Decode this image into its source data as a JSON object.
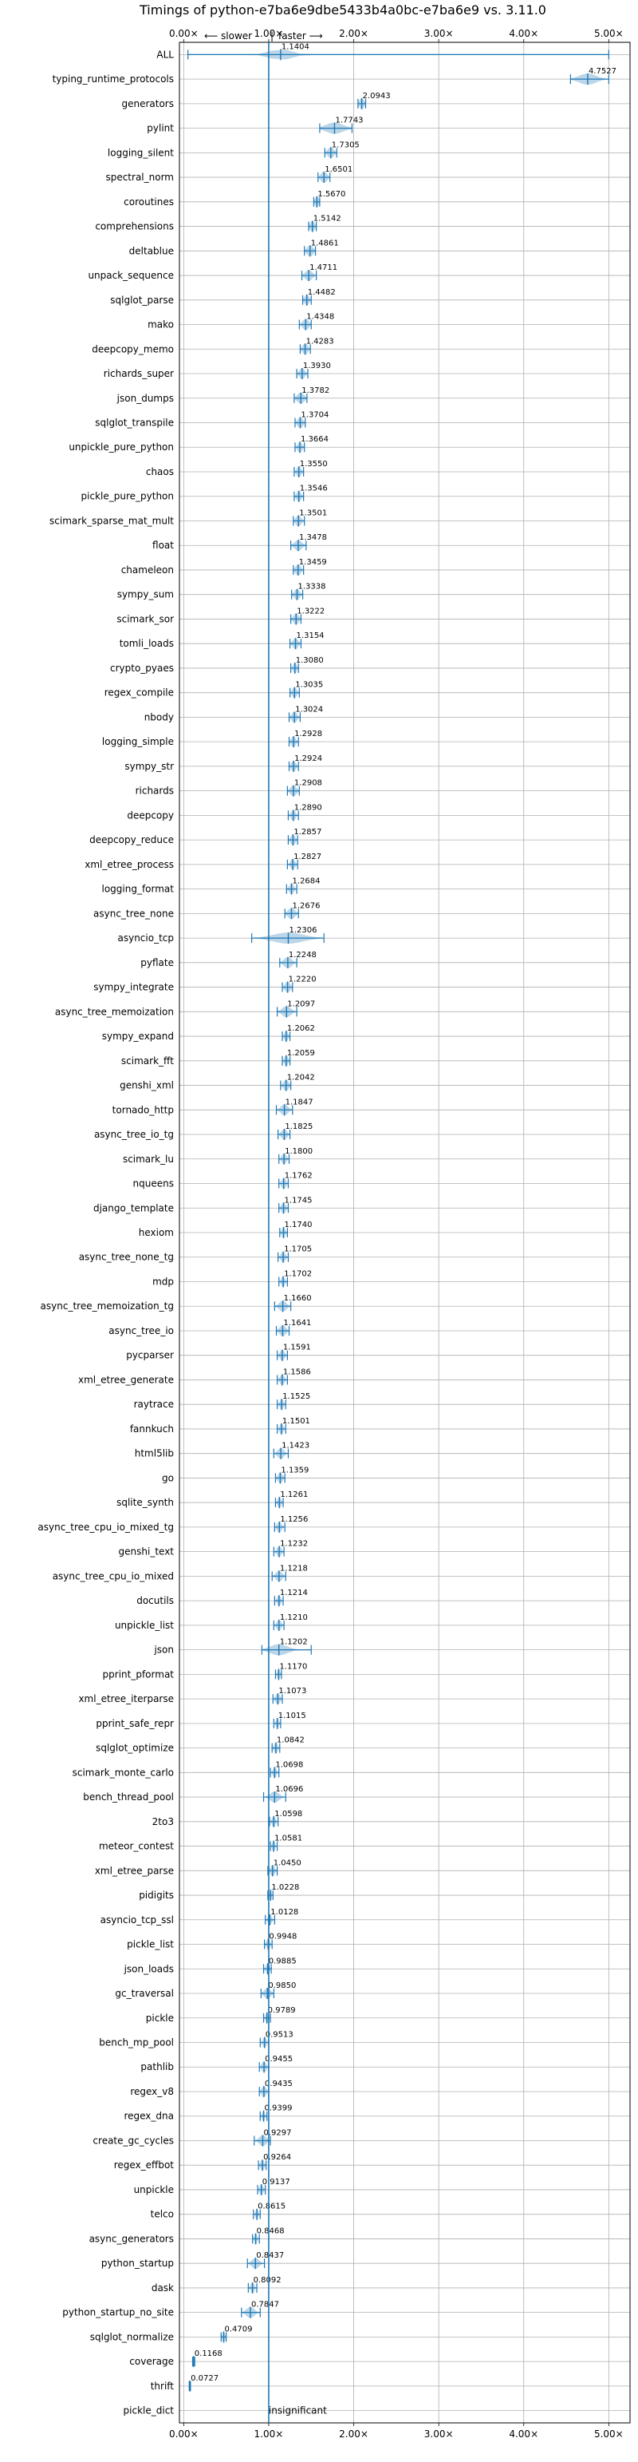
{
  "chart_data": {
    "type": "violin",
    "title": "Timings of python-e7ba6e9dbe5433b4a0bc-e7ba6e9 vs. 3.11.0",
    "slower_label": "⟵ slower",
    "faster_label": "faster ⟶",
    "separator": "|",
    "x_ticks": [
      0,
      1,
      2,
      3,
      4,
      5
    ],
    "x_tick_labels": [
      "0.00×",
      "1.00×",
      "2.00×",
      "3.00×",
      "4.00×",
      "5.00×"
    ],
    "xlim": [
      -0.05,
      5.25
    ],
    "reference_line": 1.0,
    "grid": true,
    "series": [
      {
        "name": "ALL",
        "label": "1.1404",
        "value": 1.1404,
        "lo": 0.05,
        "hi": 5.0,
        "spread": 0.25
      },
      {
        "name": "typing_runtime_protocols",
        "label": "4.7527",
        "value": 4.7527,
        "lo": 4.55,
        "hi": 5.0,
        "spread": 0.2
      },
      {
        "name": "generators",
        "label": "2.0943",
        "value": 2.0943,
        "lo": 2.05,
        "hi": 2.14,
        "spread": 0.05
      },
      {
        "name": "pylint",
        "label": "1.7743",
        "value": 1.7743,
        "lo": 1.6,
        "hi": 1.98,
        "spread": 0.2
      },
      {
        "name": "logging_silent",
        "label": "1.7305",
        "value": 1.7305,
        "lo": 1.66,
        "hi": 1.8,
        "spread": 0.07
      },
      {
        "name": "spectral_norm",
        "label": "1.6501",
        "value": 1.6501,
        "lo": 1.58,
        "hi": 1.72,
        "spread": 0.07
      },
      {
        "name": "coroutines",
        "label": "1.5670",
        "value": 1.567,
        "lo": 1.53,
        "hi": 1.6,
        "spread": 0.04
      },
      {
        "name": "comprehensions",
        "label": "1.5142",
        "value": 1.5142,
        "lo": 1.47,
        "hi": 1.56,
        "spread": 0.05
      },
      {
        "name": "deltablue",
        "label": "1.4861",
        "value": 1.4861,
        "lo": 1.42,
        "hi": 1.55,
        "spread": 0.07
      },
      {
        "name": "unpack_sequence",
        "label": "1.4711",
        "value": 1.4711,
        "lo": 1.39,
        "hi": 1.56,
        "spread": 0.08
      },
      {
        "name": "sqlglot_parse",
        "label": "1.4482",
        "value": 1.4482,
        "lo": 1.4,
        "hi": 1.5,
        "spread": 0.05
      },
      {
        "name": "mako",
        "label": "1.4348",
        "value": 1.4348,
        "lo": 1.36,
        "hi": 1.5,
        "spread": 0.07
      },
      {
        "name": "deepcopy_memo",
        "label": "1.4283",
        "value": 1.4283,
        "lo": 1.37,
        "hi": 1.49,
        "spread": 0.06
      },
      {
        "name": "richards_super",
        "label": "1.3930",
        "value": 1.393,
        "lo": 1.33,
        "hi": 1.46,
        "spread": 0.06
      },
      {
        "name": "json_dumps",
        "label": "1.3782",
        "value": 1.3782,
        "lo": 1.3,
        "hi": 1.45,
        "spread": 0.08
      },
      {
        "name": "sqlglot_transpile",
        "label": "1.3704",
        "value": 1.3704,
        "lo": 1.31,
        "hi": 1.43,
        "spread": 0.06
      },
      {
        "name": "unpickle_pure_python",
        "label": "1.3664",
        "value": 1.3664,
        "lo": 1.31,
        "hi": 1.42,
        "spread": 0.05
      },
      {
        "name": "chaos",
        "label": "1.3550",
        "value": 1.355,
        "lo": 1.3,
        "hi": 1.41,
        "spread": 0.05
      },
      {
        "name": "pickle_pure_python",
        "label": "1.3546",
        "value": 1.3546,
        "lo": 1.3,
        "hi": 1.41,
        "spread": 0.05
      },
      {
        "name": "scimark_sparse_mat_mult",
        "label": "1.3501",
        "value": 1.3501,
        "lo": 1.29,
        "hi": 1.42,
        "spread": 0.06
      },
      {
        "name": "float",
        "label": "1.3478",
        "value": 1.3478,
        "lo": 1.26,
        "hi": 1.44,
        "spread": 0.08
      },
      {
        "name": "chameleon",
        "label": "1.3459",
        "value": 1.3459,
        "lo": 1.29,
        "hi": 1.41,
        "spread": 0.06
      },
      {
        "name": "sympy_sum",
        "label": "1.3338",
        "value": 1.3338,
        "lo": 1.27,
        "hi": 1.4,
        "spread": 0.06
      },
      {
        "name": "scimark_sor",
        "label": "1.3222",
        "value": 1.3222,
        "lo": 1.26,
        "hi": 1.38,
        "spread": 0.06
      },
      {
        "name": "tomli_loads",
        "label": "1.3154",
        "value": 1.3154,
        "lo": 1.25,
        "hi": 1.38,
        "spread": 0.06
      },
      {
        "name": "crypto_pyaes",
        "label": "1.3080",
        "value": 1.308,
        "lo": 1.26,
        "hi": 1.35,
        "spread": 0.04
      },
      {
        "name": "regex_compile",
        "label": "1.3035",
        "value": 1.3035,
        "lo": 1.25,
        "hi": 1.36,
        "spread": 0.05
      },
      {
        "name": "nbody",
        "label": "1.3024",
        "value": 1.3024,
        "lo": 1.24,
        "hi": 1.37,
        "spread": 0.06
      },
      {
        "name": "logging_simple",
        "label": "1.2928",
        "value": 1.2928,
        "lo": 1.24,
        "hi": 1.35,
        "spread": 0.05
      },
      {
        "name": "sympy_str",
        "label": "1.2924",
        "value": 1.2924,
        "lo": 1.24,
        "hi": 1.35,
        "spread": 0.05
      },
      {
        "name": "richards",
        "label": "1.2908",
        "value": 1.2908,
        "lo": 1.22,
        "hi": 1.36,
        "spread": 0.07
      },
      {
        "name": "deepcopy",
        "label": "1.2890",
        "value": 1.289,
        "lo": 1.23,
        "hi": 1.35,
        "spread": 0.05
      },
      {
        "name": "deepcopy_reduce",
        "label": "1.2857",
        "value": 1.2857,
        "lo": 1.23,
        "hi": 1.34,
        "spread": 0.05
      },
      {
        "name": "xml_etree_process",
        "label": "1.2827",
        "value": 1.2827,
        "lo": 1.22,
        "hi": 1.34,
        "spread": 0.05
      },
      {
        "name": "logging_format",
        "label": "1.2684",
        "value": 1.2684,
        "lo": 1.21,
        "hi": 1.33,
        "spread": 0.05
      },
      {
        "name": "async_tree_none",
        "label": "1.2676",
        "value": 1.2676,
        "lo": 1.19,
        "hi": 1.35,
        "spread": 0.08
      },
      {
        "name": "asyncio_tcp",
        "label": "1.2306",
        "value": 1.2306,
        "lo": 0.8,
        "hi": 1.65,
        "spread": 0.35
      },
      {
        "name": "pyflate",
        "label": "1.2248",
        "value": 1.2248,
        "lo": 1.13,
        "hi": 1.33,
        "spread": 0.09
      },
      {
        "name": "sympy_integrate",
        "label": "1.2220",
        "value": 1.222,
        "lo": 1.16,
        "hi": 1.28,
        "spread": 0.06
      },
      {
        "name": "async_tree_memoization",
        "label": "1.2097",
        "value": 1.2097,
        "lo": 1.1,
        "hi": 1.33,
        "spread": 0.1
      },
      {
        "name": "sympy_expand",
        "label": "1.2062",
        "value": 1.2062,
        "lo": 1.16,
        "hi": 1.25,
        "spread": 0.04
      },
      {
        "name": "scimark_fft",
        "label": "1.2059",
        "value": 1.2059,
        "lo": 1.16,
        "hi": 1.25,
        "spread": 0.04
      },
      {
        "name": "genshi_xml",
        "label": "1.2042",
        "value": 1.2042,
        "lo": 1.14,
        "hi": 1.26,
        "spread": 0.06
      },
      {
        "name": "tornado_http",
        "label": "1.1847",
        "value": 1.1847,
        "lo": 1.09,
        "hi": 1.28,
        "spread": 0.08
      },
      {
        "name": "async_tree_io_tg",
        "label": "1.1825",
        "value": 1.1825,
        "lo": 1.11,
        "hi": 1.25,
        "spread": 0.06
      },
      {
        "name": "scimark_lu",
        "label": "1.1800",
        "value": 1.18,
        "lo": 1.12,
        "hi": 1.24,
        "spread": 0.05
      },
      {
        "name": "nqueens",
        "label": "1.1762",
        "value": 1.1762,
        "lo": 1.12,
        "hi": 1.23,
        "spread": 0.05
      },
      {
        "name": "django_template",
        "label": "1.1745",
        "value": 1.1745,
        "lo": 1.12,
        "hi": 1.23,
        "spread": 0.05
      },
      {
        "name": "hexiom",
        "label": "1.1740",
        "value": 1.174,
        "lo": 1.13,
        "hi": 1.22,
        "spread": 0.04
      },
      {
        "name": "async_tree_none_tg",
        "label": "1.1705",
        "value": 1.1705,
        "lo": 1.11,
        "hi": 1.23,
        "spread": 0.05
      },
      {
        "name": "mdp",
        "label": "1.1702",
        "value": 1.1702,
        "lo": 1.12,
        "hi": 1.22,
        "spread": 0.04
      },
      {
        "name": "async_tree_memoization_tg",
        "label": "1.1660",
        "value": 1.166,
        "lo": 1.07,
        "hi": 1.26,
        "spread": 0.08
      },
      {
        "name": "async_tree_io",
        "label": "1.1641",
        "value": 1.1641,
        "lo": 1.09,
        "hi": 1.24,
        "spread": 0.07
      },
      {
        "name": "pycparser",
        "label": "1.1591",
        "value": 1.1591,
        "lo": 1.1,
        "hi": 1.22,
        "spread": 0.05
      },
      {
        "name": "xml_etree_generate",
        "label": "1.1586",
        "value": 1.1586,
        "lo": 1.1,
        "hi": 1.22,
        "spread": 0.05
      },
      {
        "name": "raytrace",
        "label": "1.1525",
        "value": 1.1525,
        "lo": 1.1,
        "hi": 1.2,
        "spread": 0.04
      },
      {
        "name": "fannkuch",
        "label": "1.1501",
        "value": 1.1501,
        "lo": 1.1,
        "hi": 1.2,
        "spread": 0.04
      },
      {
        "name": "html5lib",
        "label": "1.1423",
        "value": 1.1423,
        "lo": 1.06,
        "hi": 1.23,
        "spread": 0.07
      },
      {
        "name": "go",
        "label": "1.1359",
        "value": 1.1359,
        "lo": 1.08,
        "hi": 1.19,
        "spread": 0.05
      },
      {
        "name": "sqlite_synth",
        "label": "1.1261",
        "value": 1.1261,
        "lo": 1.08,
        "hi": 1.17,
        "spread": 0.04
      },
      {
        "name": "async_tree_cpu_io_mixed_tg",
        "label": "1.1256",
        "value": 1.1256,
        "lo": 1.07,
        "hi": 1.19,
        "spread": 0.05
      },
      {
        "name": "genshi_text",
        "label": "1.1232",
        "value": 1.1232,
        "lo": 1.06,
        "hi": 1.18,
        "spread": 0.05
      },
      {
        "name": "async_tree_cpu_io_mixed",
        "label": "1.1218",
        "value": 1.1218,
        "lo": 1.04,
        "hi": 1.2,
        "spread": 0.07
      },
      {
        "name": "docutils",
        "label": "1.1214",
        "value": 1.1214,
        "lo": 1.07,
        "hi": 1.17,
        "spread": 0.04
      },
      {
        "name": "unpickle_list",
        "label": "1.1210",
        "value": 1.121,
        "lo": 1.06,
        "hi": 1.18,
        "spread": 0.05
      },
      {
        "name": "json",
        "label": "1.1202",
        "value": 1.1202,
        "lo": 0.92,
        "hi": 1.5,
        "spread": 0.2
      },
      {
        "name": "pprint_pformat",
        "label": "1.1170",
        "value": 1.117,
        "lo": 1.08,
        "hi": 1.15,
        "spread": 0.03
      },
      {
        "name": "xml_etree_iterparse",
        "label": "1.1073",
        "value": 1.1073,
        "lo": 1.05,
        "hi": 1.16,
        "spread": 0.05
      },
      {
        "name": "pprint_safe_repr",
        "label": "1.1015",
        "value": 1.1015,
        "lo": 1.06,
        "hi": 1.14,
        "spread": 0.03
      },
      {
        "name": "sqlglot_optimize",
        "label": "1.0842",
        "value": 1.0842,
        "lo": 1.04,
        "hi": 1.13,
        "spread": 0.04
      },
      {
        "name": "scimark_monte_carlo",
        "label": "1.0698",
        "value": 1.0698,
        "lo": 1.02,
        "hi": 1.12,
        "spread": 0.04
      },
      {
        "name": "bench_thread_pool",
        "label": "1.0696",
        "value": 1.0696,
        "lo": 0.94,
        "hi": 1.2,
        "spread": 0.1
      },
      {
        "name": "2to3",
        "label": "1.0598",
        "value": 1.0598,
        "lo": 1.01,
        "hi": 1.11,
        "spread": 0.04
      },
      {
        "name": "meteor_contest",
        "label": "1.0581",
        "value": 1.0581,
        "lo": 1.02,
        "hi": 1.1,
        "spread": 0.03
      },
      {
        "name": "xml_etree_parse",
        "label": "1.0450",
        "value": 1.045,
        "lo": 0.99,
        "hi": 1.1,
        "spread": 0.05
      },
      {
        "name": "pidigits",
        "label": "1.0228",
        "value": 1.0228,
        "lo": 0.99,
        "hi": 1.05,
        "spread": 0.02
      },
      {
        "name": "asyncio_tcp_ssl",
        "label": "1.0128",
        "value": 1.0128,
        "lo": 0.96,
        "hi": 1.07,
        "spread": 0.04
      },
      {
        "name": "pickle_list",
        "label": "0.9948",
        "value": 0.9948,
        "lo": 0.95,
        "hi": 1.04,
        "spread": 0.04
      },
      {
        "name": "json_loads",
        "label": "0.9885",
        "value": 0.9885,
        "lo": 0.94,
        "hi": 1.03,
        "spread": 0.04
      },
      {
        "name": "gc_traversal",
        "label": "0.9850",
        "value": 0.985,
        "lo": 0.91,
        "hi": 1.06,
        "spread": 0.07
      },
      {
        "name": "pickle",
        "label": "0.9789",
        "value": 0.9789,
        "lo": 0.94,
        "hi": 1.02,
        "spread": 0.03
      },
      {
        "name": "bench_mp_pool",
        "label": "0.9513",
        "value": 0.9513,
        "lo": 0.9,
        "hi": 1.0,
        "spread": 0.04
      },
      {
        "name": "pathlib",
        "label": "0.9455",
        "value": 0.9455,
        "lo": 0.89,
        "hi": 1.0,
        "spread": 0.05
      },
      {
        "name": "regex_v8",
        "label": "0.9435",
        "value": 0.9435,
        "lo": 0.89,
        "hi": 1.0,
        "spread": 0.05
      },
      {
        "name": "regex_dna",
        "label": "0.9399",
        "value": 0.9399,
        "lo": 0.9,
        "hi": 0.98,
        "spread": 0.03
      },
      {
        "name": "create_gc_cycles",
        "label": "0.9297",
        "value": 0.9297,
        "lo": 0.83,
        "hi": 1.02,
        "spread": 0.08
      },
      {
        "name": "regex_effbot",
        "label": "0.9264",
        "value": 0.9264,
        "lo": 0.88,
        "hi": 0.97,
        "spread": 0.04
      },
      {
        "name": "unpickle",
        "label": "0.9137",
        "value": 0.9137,
        "lo": 0.87,
        "hi": 0.96,
        "spread": 0.04
      },
      {
        "name": "telco",
        "label": "0.8615",
        "value": 0.8615,
        "lo": 0.82,
        "hi": 0.9,
        "spread": 0.03
      },
      {
        "name": "async_generators",
        "label": "0.8468",
        "value": 0.8468,
        "lo": 0.81,
        "hi": 0.89,
        "spread": 0.03
      },
      {
        "name": "python_startup",
        "label": "0.8437",
        "value": 0.8437,
        "lo": 0.75,
        "hi": 0.95,
        "spread": 0.08
      },
      {
        "name": "dask",
        "label": "0.8092",
        "value": 0.8092,
        "lo": 0.76,
        "hi": 0.86,
        "spread": 0.04
      },
      {
        "name": "python_startup_no_site",
        "label": "0.7847",
        "value": 0.7847,
        "lo": 0.68,
        "hi": 0.9,
        "spread": 0.09
      },
      {
        "name": "sqlglot_normalize",
        "label": "0.4709",
        "value": 0.4709,
        "lo": 0.44,
        "hi": 0.5,
        "spread": 0.03
      },
      {
        "name": "coverage",
        "label": "0.1168",
        "value": 0.1168,
        "lo": 0.105,
        "hi": 0.13,
        "spread": 0.01
      },
      {
        "name": "thrift",
        "label": "0.0727",
        "value": 0.0727,
        "lo": 0.065,
        "hi": 0.08,
        "spread": 0.008
      },
      {
        "name": "pickle_dict",
        "label": "insignificant",
        "value": 1.0,
        "lo": 1.0,
        "hi": 1.0,
        "spread": 0
      }
    ]
  }
}
